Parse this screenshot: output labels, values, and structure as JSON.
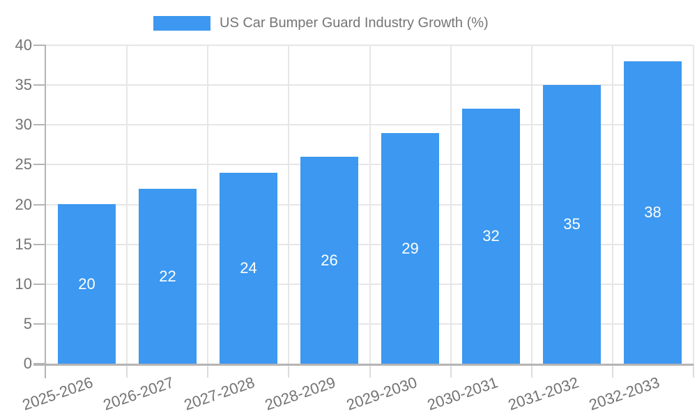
{
  "legend": {
    "label": "US Car Bumper Guard Industry Growth (%)"
  },
  "chart_data": {
    "type": "bar",
    "title": "US Car Bumper Guard Industry Growth (%)",
    "categories": [
      "2025-2026",
      "2026-2027",
      "2027-2028",
      "2028-2029",
      "2029-2030",
      "2030-2031",
      "2031-2032",
      "2032-2033"
    ],
    "values": [
      20,
      22,
      24,
      26,
      29,
      32,
      35,
      38
    ],
    "xlabel": "",
    "ylabel": "",
    "ylim": [
      0,
      40
    ],
    "ytick_step": 5,
    "yticks": [
      0,
      5,
      10,
      15,
      20,
      25,
      30,
      35,
      40
    ],
    "grid": true,
    "legend_position": "top",
    "x_label_rotation_deg": -19,
    "bar_labels_inside": true,
    "colors": {
      "bar": "#3C98F0",
      "bar_label_text": "#ffffff",
      "axis_text": "#737373",
      "legend_text": "#757575",
      "grid_line": "#e6e6e6",
      "minor_tick": "#dcdcdc",
      "axis_line": "#b4b4b4",
      "background": "#ffffff"
    }
  }
}
